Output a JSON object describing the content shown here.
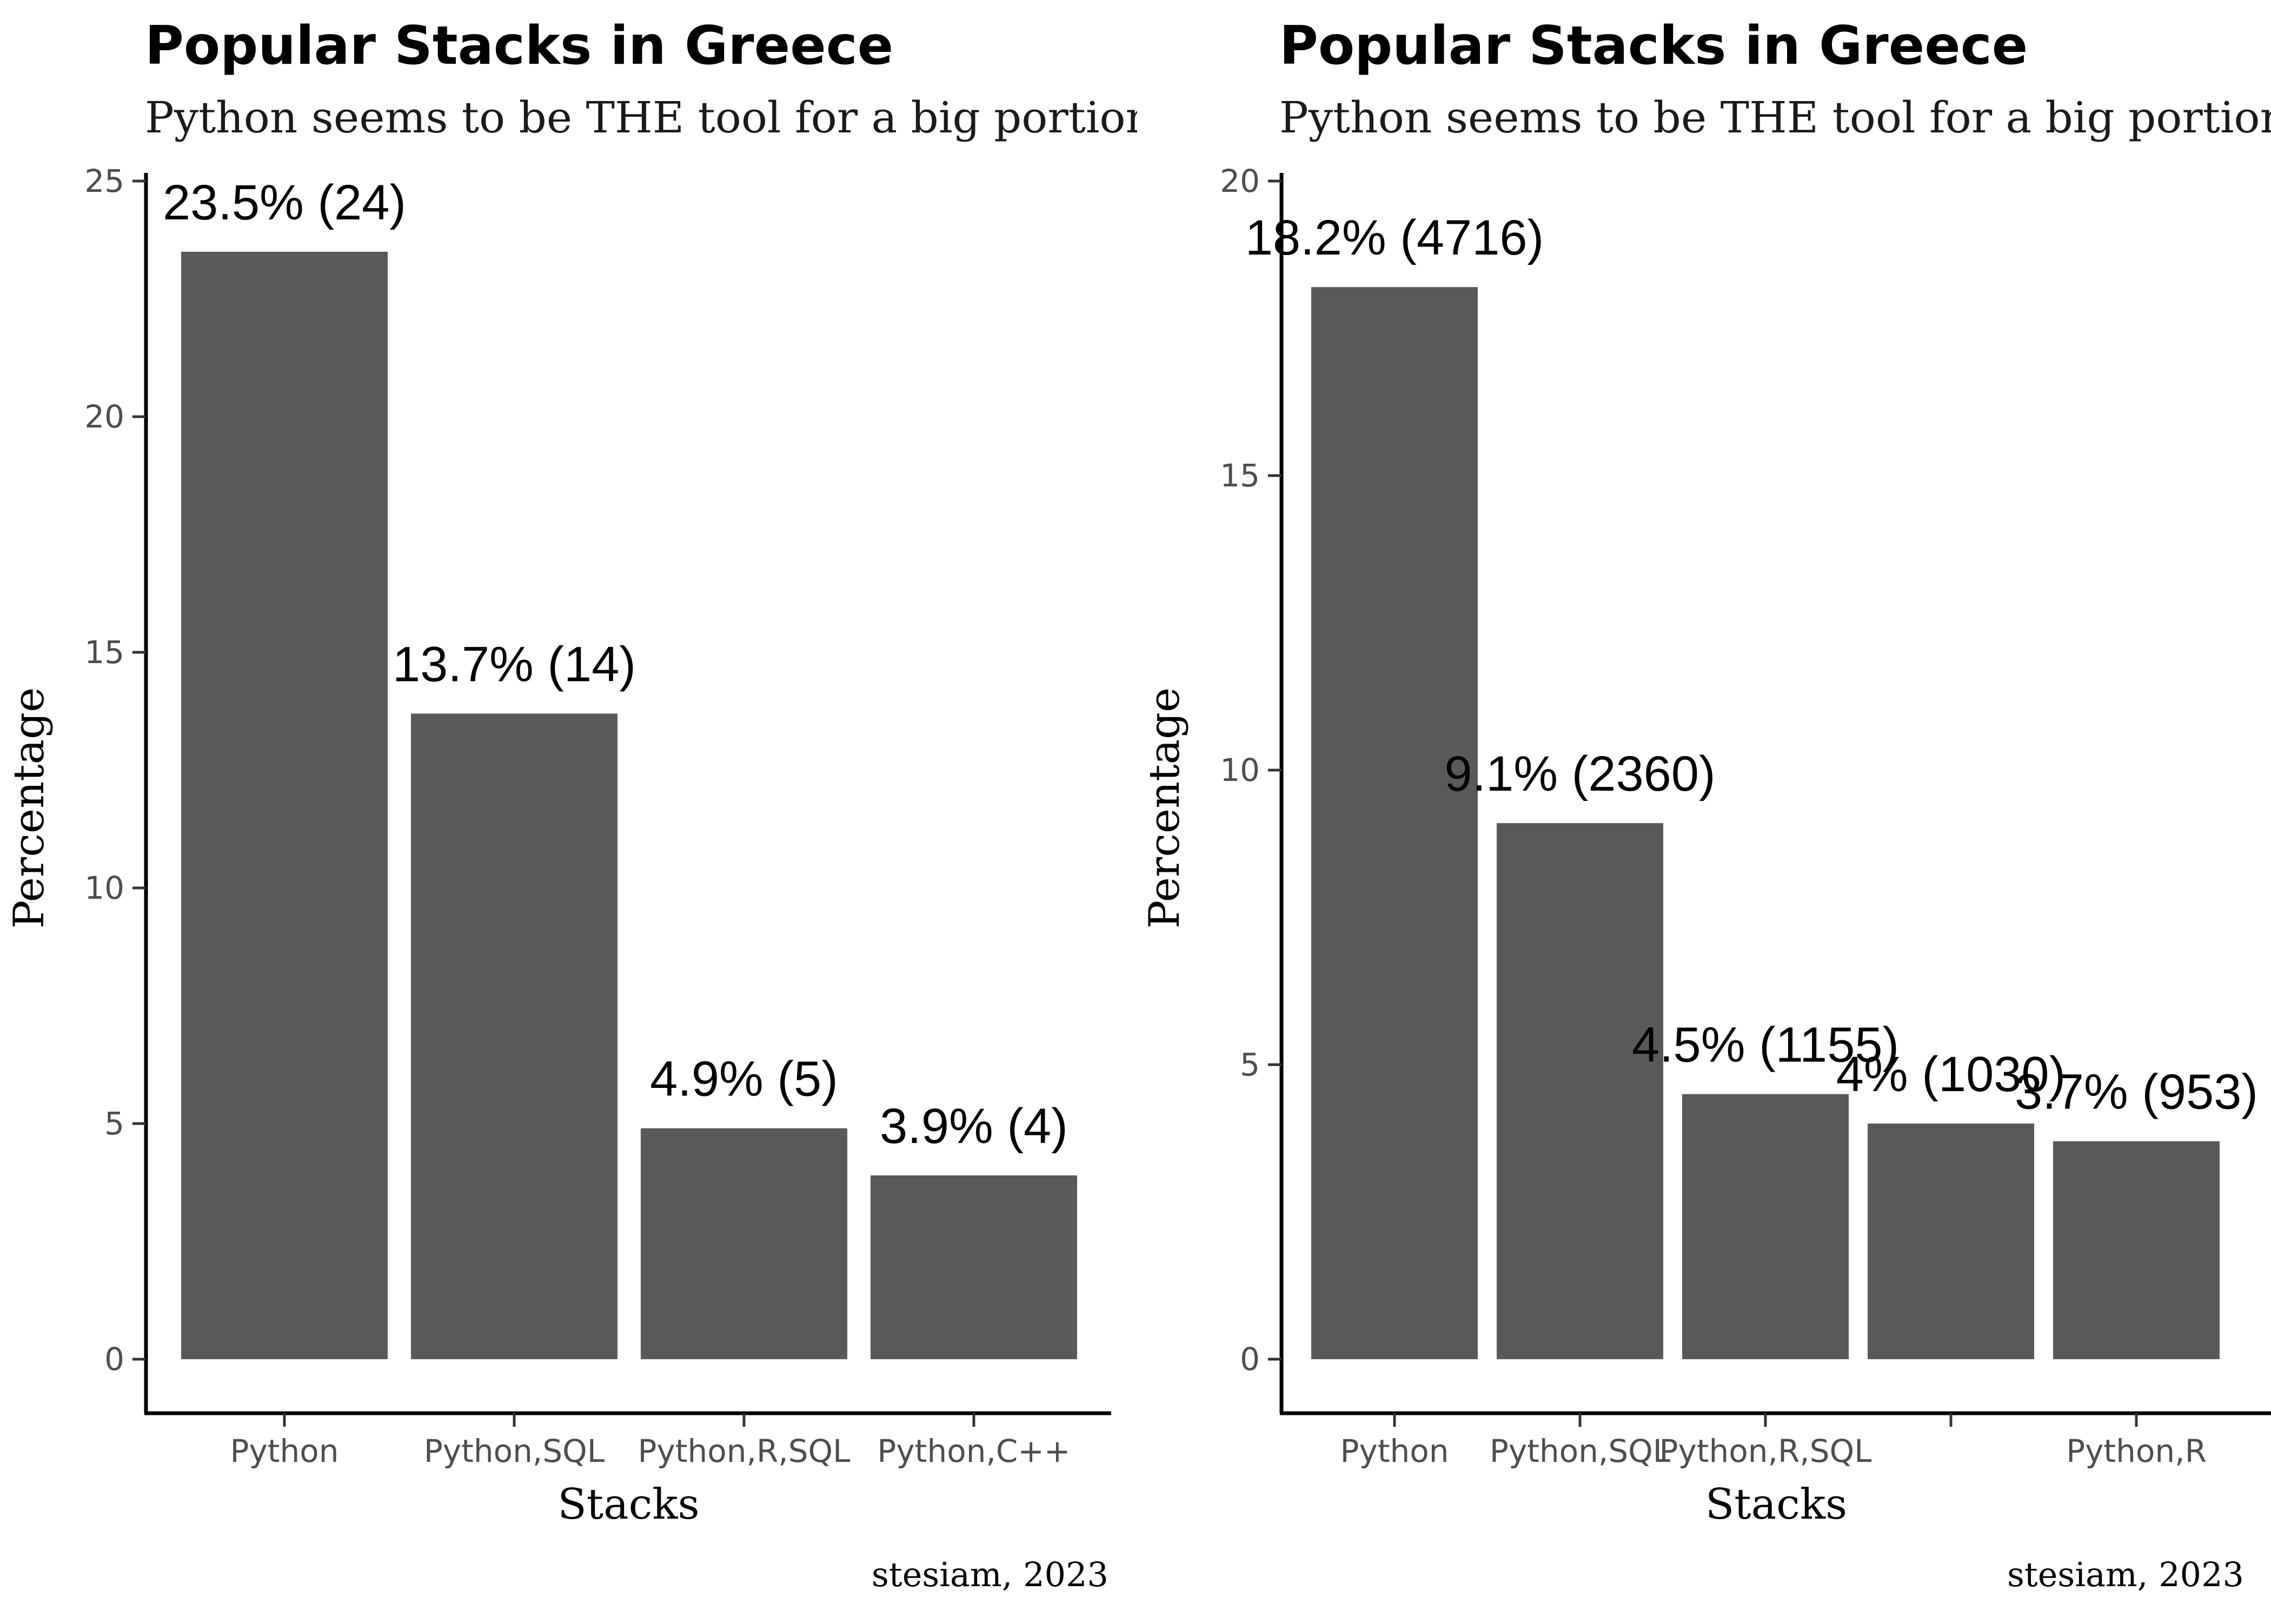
{
  "chart_data": [
    {
      "type": "bar",
      "title": "Popular Stacks in Greece",
      "subtitle": "Python seems to be THE tool for a big portion o",
      "xlabel": "Stacks",
      "ylabel": "Percentage",
      "caption": "stesiam, 2023",
      "ylim": [
        0,
        25
      ],
      "yticks": [
        0,
        5,
        10,
        15,
        20,
        25
      ],
      "categories": [
        "Python",
        "Python,SQL",
        "Python,R,SQL",
        "Python,C++"
      ],
      "values": [
        23.5,
        13.7,
        4.9,
        3.9
      ],
      "counts": [
        24,
        14,
        5,
        4
      ],
      "data_labels": [
        "23.5% (24)",
        "13.7% (14)",
        "4.9% (5)",
        "3.9% (4)"
      ],
      "bar_color": "#595959",
      "grid": false,
      "legend": "none"
    },
    {
      "type": "bar",
      "title": "Popular Stacks in Greece",
      "subtitle": "Python seems to be THE tool for a big portion o",
      "xlabel": "Stacks",
      "ylabel": "Percentage",
      "caption": "stesiam, 2023",
      "ylim": [
        0,
        20
      ],
      "yticks": [
        0,
        5,
        10,
        15,
        20
      ],
      "categories": [
        "Python",
        "Python,SQL",
        "Python,R,SQL",
        "",
        "Python,R"
      ],
      "values": [
        18.2,
        9.1,
        4.5,
        4.0,
        3.7
      ],
      "counts": [
        4716,
        2360,
        1155,
        1030,
        953
      ],
      "data_labels": [
        "18.2% (4716)",
        "9.1% (2360)",
        "4.5% (1155)",
        "4% (1030)",
        "3.7% (953)"
      ],
      "bar_color": "#595959",
      "grid": false,
      "legend": "none"
    }
  ]
}
